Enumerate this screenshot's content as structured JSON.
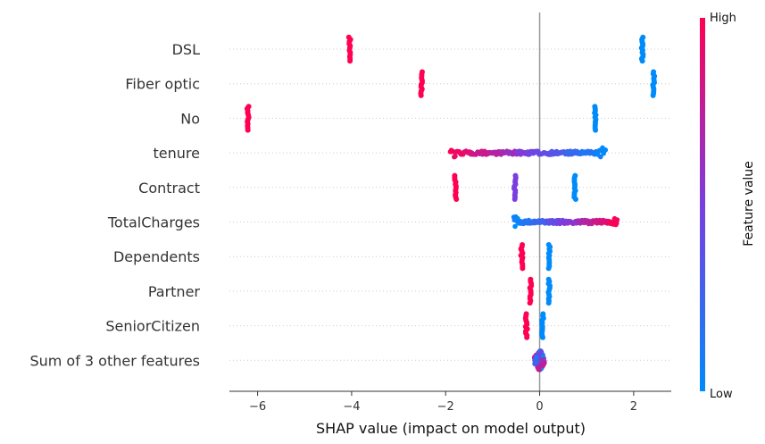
{
  "chart_data": {
    "type": "scatter",
    "subtype": "shap-beeswarm",
    "title": "",
    "xlabel": "SHAP value (impact on model output)",
    "xlim": [
      -6.6,
      2.8
    ],
    "xticks": [
      -6,
      -4,
      -2,
      0,
      2
    ],
    "colorbar": {
      "title": "Feature value",
      "high_label": "High",
      "low_label": "Low",
      "low_color": "#008bfb",
      "mid_color": "#7a3ee0",
      "high_color": "#ff0052"
    },
    "features": [
      {
        "name": "DSL",
        "clusters": [
          {
            "x_min": -4.06,
            "x_max": -4.02,
            "value": 1.0
          },
          {
            "x_min": 2.17,
            "x_max": 2.2,
            "value": 0.0
          }
        ]
      },
      {
        "name": "Fiber optic",
        "clusters": [
          {
            "x_min": -2.53,
            "x_max": -2.5,
            "value": 1.0
          },
          {
            "x_min": 2.41,
            "x_max": 2.44,
            "value": 0.0
          }
        ]
      },
      {
        "name": "No",
        "clusters": [
          {
            "x_min": -6.23,
            "x_max": -6.18,
            "value": 1.0
          },
          {
            "x_min": 1.17,
            "x_max": 1.19,
            "value": 0.0
          }
        ]
      },
      {
        "name": "tenure",
        "clusters": [
          {
            "x_min": -1.9,
            "x_max": 1.4,
            "value_at_min": 1.0,
            "value_at_max": 0.0
          }
        ]
      },
      {
        "name": "Contract",
        "clusters": [
          {
            "x_min": -1.8,
            "x_max": -1.78,
            "value": 1.0
          },
          {
            "x_min": -0.55,
            "x_max": -0.5,
            "value": 0.5
          },
          {
            "x_min": 0.74,
            "x_max": 0.77,
            "value": 0.0
          }
        ]
      },
      {
        "name": "TotalCharges",
        "clusters": [
          {
            "x_min": -0.55,
            "x_max": 1.65,
            "value_at_min": 0.0,
            "value_at_max": 1.0
          }
        ]
      },
      {
        "name": "Dependents",
        "clusters": [
          {
            "x_min": -0.4,
            "x_max": -0.36,
            "value": 1.0
          },
          {
            "x_min": 0.2,
            "x_max": 0.22,
            "value": 0.0
          }
        ]
      },
      {
        "name": "Partner",
        "clusters": [
          {
            "x_min": -0.21,
            "x_max": -0.17,
            "value": 1.0
          },
          {
            "x_min": 0.19,
            "x_max": 0.21,
            "value": 0.0
          }
        ]
      },
      {
        "name": "SeniorCitizen",
        "clusters": [
          {
            "x_min": -0.3,
            "x_max": -0.26,
            "value": 1.0
          },
          {
            "x_min": 0.05,
            "x_max": 0.08,
            "value": 0.0
          }
        ]
      },
      {
        "name": "Sum of 3 other features",
        "clusters": [
          {
            "x_min": -0.15,
            "x_max": 0.15,
            "value": 0.5,
            "spread": "wide"
          }
        ]
      }
    ]
  }
}
